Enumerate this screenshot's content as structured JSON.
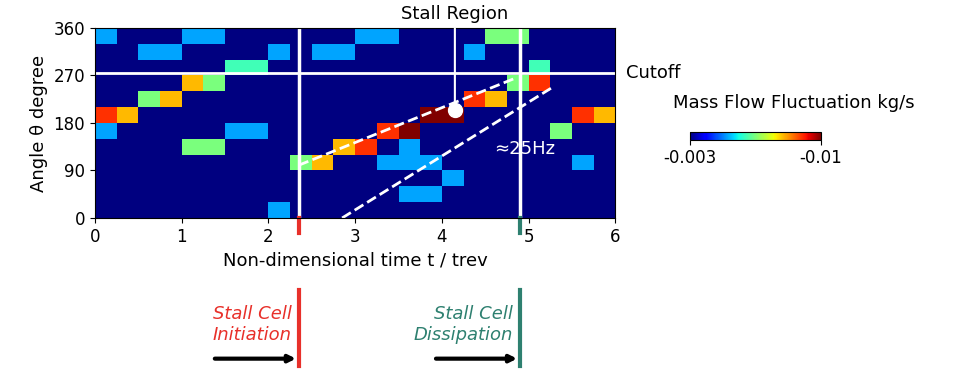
{
  "chart_data": {
    "type": "heatmap",
    "x_label": "Non-dimensional time t / trev",
    "y_label": "Angle θ degree",
    "xlim": [
      0,
      6
    ],
    "ylim": [
      0,
      360
    ],
    "xticks": [
      0,
      1,
      2,
      3,
      4,
      5,
      6
    ],
    "yticks": [
      0,
      90,
      180,
      270,
      360
    ],
    "x_edges": [
      0,
      0.25,
      0.5,
      0.75,
      1,
      1.25,
      1.5,
      1.75,
      2,
      2.25,
      2.5,
      2.75,
      3,
      3.25,
      3.5,
      3.75,
      4,
      4.25,
      4.5,
      4.75,
      5,
      5.25,
      5.5,
      5.75,
      6
    ],
    "y_edges": [
      0,
      30,
      60,
      90,
      120,
      150,
      180,
      210,
      240,
      270,
      300,
      330,
      360
    ],
    "cells": [
      [
        -0.003,
        -0.003,
        -0.003,
        -0.003,
        -0.003,
        -0.003,
        -0.003,
        -0.003,
        -0.005,
        -0.003,
        -0.003,
        -0.003,
        -0.003,
        -0.003,
        -0.003,
        -0.003,
        -0.003,
        -0.003,
        -0.003,
        -0.003,
        -0.003,
        -0.003,
        -0.003,
        -0.003
      ],
      [
        -0.003,
        -0.003,
        -0.003,
        -0.003,
        -0.003,
        -0.003,
        -0.003,
        -0.003,
        -0.003,
        -0.003,
        -0.003,
        -0.003,
        -0.003,
        -0.003,
        -0.005,
        -0.005,
        -0.003,
        -0.003,
        -0.003,
        -0.003,
        -0.003,
        -0.003,
        -0.003,
        -0.003
      ],
      [
        -0.003,
        -0.003,
        -0.003,
        -0.003,
        -0.003,
        -0.003,
        -0.003,
        -0.003,
        -0.003,
        -0.003,
        -0.003,
        -0.003,
        -0.003,
        -0.003,
        -0.003,
        -0.003,
        -0.005,
        -0.003,
        -0.003,
        -0.003,
        -0.003,
        -0.003,
        -0.003,
        -0.003
      ],
      [
        -0.003,
        -0.003,
        -0.003,
        -0.003,
        -0.003,
        -0.003,
        -0.003,
        -0.003,
        -0.003,
        -0.0065,
        -0.008,
        -0.003,
        -0.003,
        -0.005,
        -0.005,
        -0.005,
        -0.003,
        -0.003,
        -0.003,
        -0.003,
        -0.003,
        -0.003,
        -0.005,
        -0.003
      ],
      [
        -0.003,
        -0.003,
        -0.003,
        -0.003,
        -0.0065,
        -0.0065,
        -0.003,
        -0.003,
        -0.003,
        -0.003,
        -0.003,
        -0.008,
        -0.009,
        -0.003,
        -0.005,
        -0.003,
        -0.003,
        -0.003,
        -0.003,
        -0.003,
        -0.003,
        -0.003,
        -0.003,
        -0.003
      ],
      [
        -0.005,
        -0.003,
        -0.003,
        -0.003,
        -0.003,
        -0.003,
        -0.005,
        -0.005,
        -0.003,
        -0.003,
        -0.003,
        -0.003,
        -0.003,
        -0.009,
        -0.01,
        -0.003,
        -0.003,
        -0.003,
        -0.003,
        -0.003,
        -0.003,
        -0.0065,
        -0.003,
        -0.003
      ],
      [
        -0.009,
        -0.008,
        -0.003,
        -0.003,
        -0.003,
        -0.003,
        -0.003,
        -0.003,
        -0.003,
        -0.003,
        -0.003,
        -0.003,
        -0.003,
        -0.003,
        -0.003,
        -0.01,
        -0.01,
        -0.003,
        -0.003,
        -0.003,
        -0.003,
        -0.003,
        -0.009,
        -0.008
      ],
      [
        -0.003,
        -0.003,
        -0.0065,
        -0.008,
        -0.003,
        -0.003,
        -0.003,
        -0.003,
        -0.003,
        -0.003,
        -0.003,
        -0.003,
        -0.003,
        -0.003,
        -0.003,
        -0.003,
        -0.003,
        -0.009,
        -0.008,
        -0.003,
        -0.003,
        -0.003,
        -0.003,
        -0.003
      ],
      [
        -0.003,
        -0.003,
        -0.003,
        -0.003,
        -0.008,
        -0.0065,
        -0.003,
        -0.003,
        -0.003,
        -0.003,
        -0.003,
        -0.003,
        -0.003,
        -0.003,
        -0.003,
        -0.003,
        -0.003,
        -0.003,
        -0.003,
        -0.0065,
        -0.009,
        -0.003,
        -0.003,
        -0.003
      ],
      [
        -0.003,
        -0.003,
        -0.003,
        -0.003,
        -0.003,
        -0.003,
        -0.006,
        -0.006,
        -0.003,
        -0.003,
        -0.003,
        -0.003,
        -0.003,
        -0.003,
        -0.003,
        -0.003,
        -0.003,
        -0.003,
        -0.003,
        -0.003,
        -0.006,
        -0.003,
        -0.003,
        -0.003
      ],
      [
        -0.003,
        -0.003,
        -0.005,
        -0.005,
        -0.003,
        -0.003,
        -0.003,
        -0.003,
        -0.005,
        -0.003,
        -0.005,
        -0.005,
        -0.003,
        -0.003,
        -0.003,
        -0.003,
        -0.003,
        -0.005,
        -0.003,
        -0.003,
        -0.003,
        -0.003,
        -0.003,
        -0.003
      ],
      [
        -0.005,
        -0.003,
        -0.003,
        -0.003,
        -0.005,
        -0.005,
        -0.003,
        -0.003,
        -0.003,
        -0.003,
        -0.003,
        -0.003,
        -0.005,
        -0.005,
        -0.003,
        -0.003,
        -0.003,
        -0.003,
        -0.0065,
        -0.0065,
        -0.003,
        -0.003,
        -0.003,
        -0.003
      ]
    ],
    "colorbar_label": "Mass Flow Fluctuation kg/s",
    "clim": [
      -0.01,
      -0.003
    ],
    "cticks": [
      -0.003,
      -0.01
    ],
    "cutoff": {
      "value": 275,
      "label": "Cutoff"
    },
    "stall_region": {
      "label": "Stall Region",
      "x": 4.15,
      "y": 205
    },
    "stall_boundaries": [
      [
        [
          2.35,
          100
        ],
        [
          4.85,
          265
        ]
      ],
      [
        [
          2.85,
          0
        ],
        [
          5.3,
          250
        ]
      ]
    ],
    "frequency_label": {
      "label": "≈25Hz",
      "x": 4.6,
      "y": 130
    },
    "events": [
      {
        "t": 2.35,
        "label": "Stall Cell\nInitiation",
        "color": "#e8302a"
      },
      {
        "t": 4.9,
        "label": "Stall Cell\nDissipation",
        "color": "#2e8070"
      }
    ]
  }
}
